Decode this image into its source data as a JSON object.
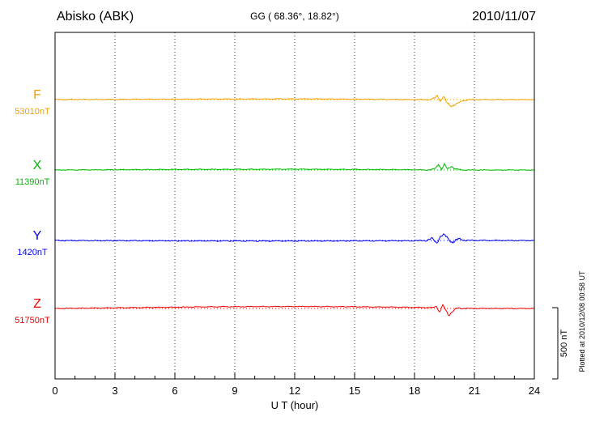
{
  "header": {
    "station": "Abisko (ABK)",
    "coordinates": "GG ( 68.36°,  18.82°)",
    "date": "2010/11/07"
  },
  "footer": {
    "xlabel": "U T (hour)",
    "plotted_note": "Plotted at 2010/12/08 00:58 UT"
  },
  "scale_bar": {
    "label": "500 nT",
    "nT": 500
  },
  "chart_data": {
    "type": "line",
    "title": "Abisko (ABK) magnetogram",
    "xlabel": "U T (hour)",
    "x_range": [
      0,
      24
    ],
    "x_ticks": [
      0,
      3,
      6,
      9,
      12,
      15,
      18,
      21,
      24
    ],
    "grid": "dotted-vertical-every-3h",
    "scale_nT_per_bar": 500,
    "series": [
      {
        "name": "F",
        "value_label": "53010nT",
        "baseline_nT": 53010,
        "color": "#f0a000",
        "noise_nT": 4,
        "points": [
          [
            0,
            0
          ],
          [
            6,
            3
          ],
          [
            12,
            5
          ],
          [
            15,
            3
          ],
          [
            18,
            0
          ],
          [
            18.8,
            0
          ],
          [
            19.0,
            10
          ],
          [
            19.15,
            28
          ],
          [
            19.3,
            -12
          ],
          [
            19.45,
            22
          ],
          [
            19.6,
            -18
          ],
          [
            19.8,
            -45
          ],
          [
            20.05,
            -35
          ],
          [
            20.35,
            -12
          ],
          [
            20.7,
            0
          ],
          [
            24,
            0
          ]
        ]
      },
      {
        "name": "X",
        "value_label": "11390nT",
        "baseline_nT": 11390,
        "color": "#00b800",
        "noise_nT": 4,
        "points": [
          [
            0,
            0
          ],
          [
            6,
            4
          ],
          [
            12,
            6
          ],
          [
            18,
            2
          ],
          [
            18.85,
            0
          ],
          [
            19.05,
            12
          ],
          [
            19.2,
            42
          ],
          [
            19.35,
            6
          ],
          [
            19.5,
            36
          ],
          [
            19.65,
            4
          ],
          [
            19.85,
            30
          ],
          [
            20.05,
            6
          ],
          [
            20.35,
            0
          ],
          [
            24,
            0
          ]
        ]
      },
      {
        "name": "Y",
        "value_label": "1420nT",
        "baseline_nT": 1420,
        "color": "#0000ee",
        "noise_nT": 5,
        "points": [
          [
            0,
            0
          ],
          [
            6,
            -3
          ],
          [
            12,
            -4
          ],
          [
            18,
            -2
          ],
          [
            18.6,
            0
          ],
          [
            18.9,
            14
          ],
          [
            19.1,
            -18
          ],
          [
            19.3,
            28
          ],
          [
            19.5,
            38
          ],
          [
            19.7,
            12
          ],
          [
            19.9,
            -14
          ],
          [
            20.2,
            12
          ],
          [
            20.6,
            0
          ],
          [
            24,
            0
          ]
        ]
      },
      {
        "name": "Z",
        "value_label": "51750nT",
        "baseline_nT": 51750,
        "color": "#ee0000",
        "noise_nT": 4,
        "points": [
          [
            0,
            0
          ],
          [
            4,
            6
          ],
          [
            8,
            12
          ],
          [
            12,
            14
          ],
          [
            15,
            12
          ],
          [
            18,
            8
          ],
          [
            18.9,
            5
          ],
          [
            19.1,
            16
          ],
          [
            19.25,
            -28
          ],
          [
            19.4,
            22
          ],
          [
            19.55,
            -8
          ],
          [
            19.7,
            -48
          ],
          [
            19.9,
            -22
          ],
          [
            20.15,
            4
          ],
          [
            20.5,
            0
          ],
          [
            24,
            0
          ]
        ]
      }
    ]
  }
}
